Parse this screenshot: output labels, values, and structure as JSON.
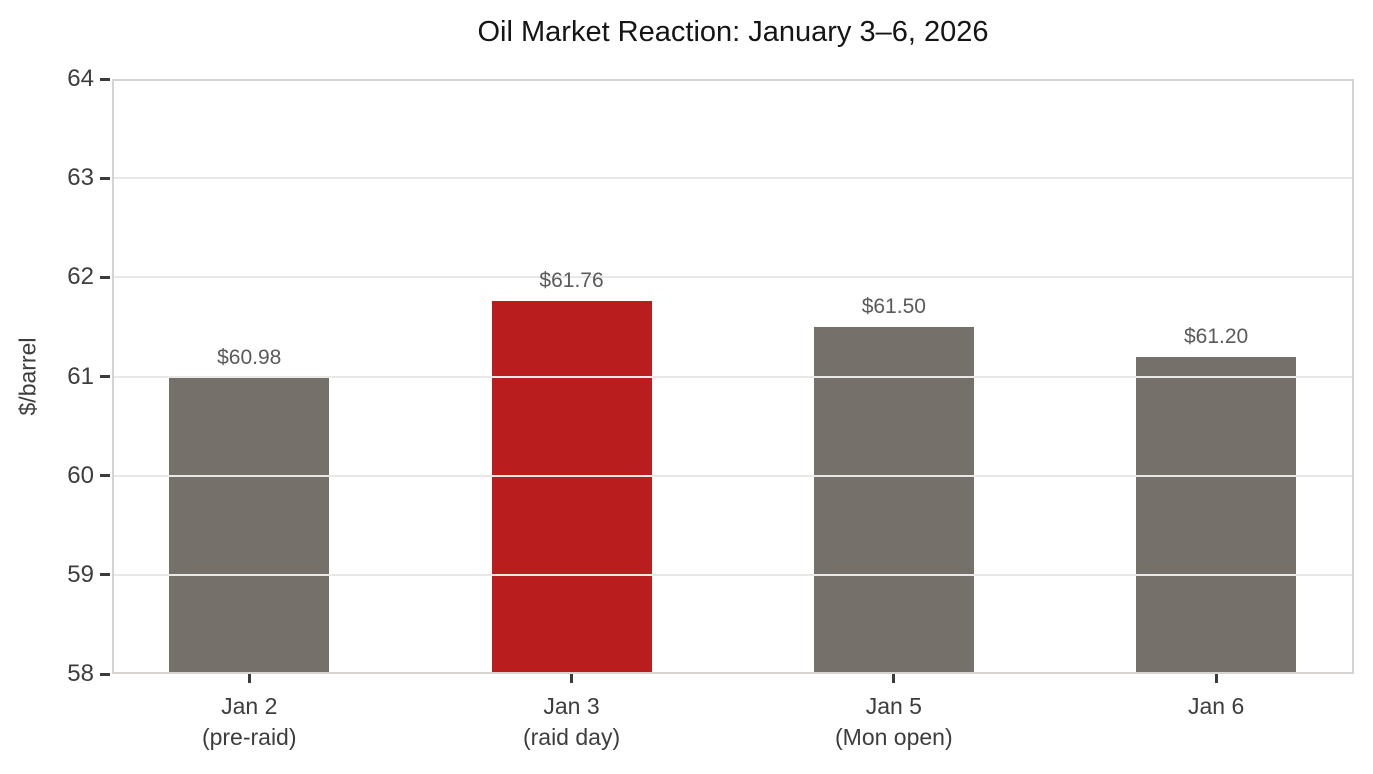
{
  "chart_data": {
    "type": "bar",
    "title": "Oil Market Reaction: January 3–6, 2026",
    "ylabel": "$/barrel",
    "xlabel": "",
    "ylim": [
      58,
      64
    ],
    "yticks": [
      58,
      59,
      60,
      61,
      62,
      63,
      64
    ],
    "grid": "horizontal, light gray, drawn over bars",
    "legend": "none",
    "categories": [
      {
        "line1": "Jan 2",
        "line2": "(pre-raid)"
      },
      {
        "line1": "Jan 3",
        "line2": "(raid day)"
      },
      {
        "line1": "Jan 5",
        "line2": "(Mon open)"
      },
      {
        "line1": "Jan 6",
        "line2": ""
      }
    ],
    "values": [
      60.98,
      61.76,
      61.5,
      61.2
    ],
    "bar_value_labels": [
      "$60.98",
      "$61.76",
      "$61.50",
      "$61.20"
    ],
    "bar_colors": [
      "#76706a",
      "#b91d1d",
      "#76706a",
      "#76706a"
    ],
    "highlight_index": 1,
    "style": {
      "background": "#ffffff",
      "grid_color": "#e9e8e7",
      "spine_color": "#d6d3d0",
      "tick_mark_color": "#3b3b3b",
      "tick_label_color": "#3d3d3d",
      "value_label_color": "#5a5a5a",
      "title_color": "#151515"
    }
  }
}
